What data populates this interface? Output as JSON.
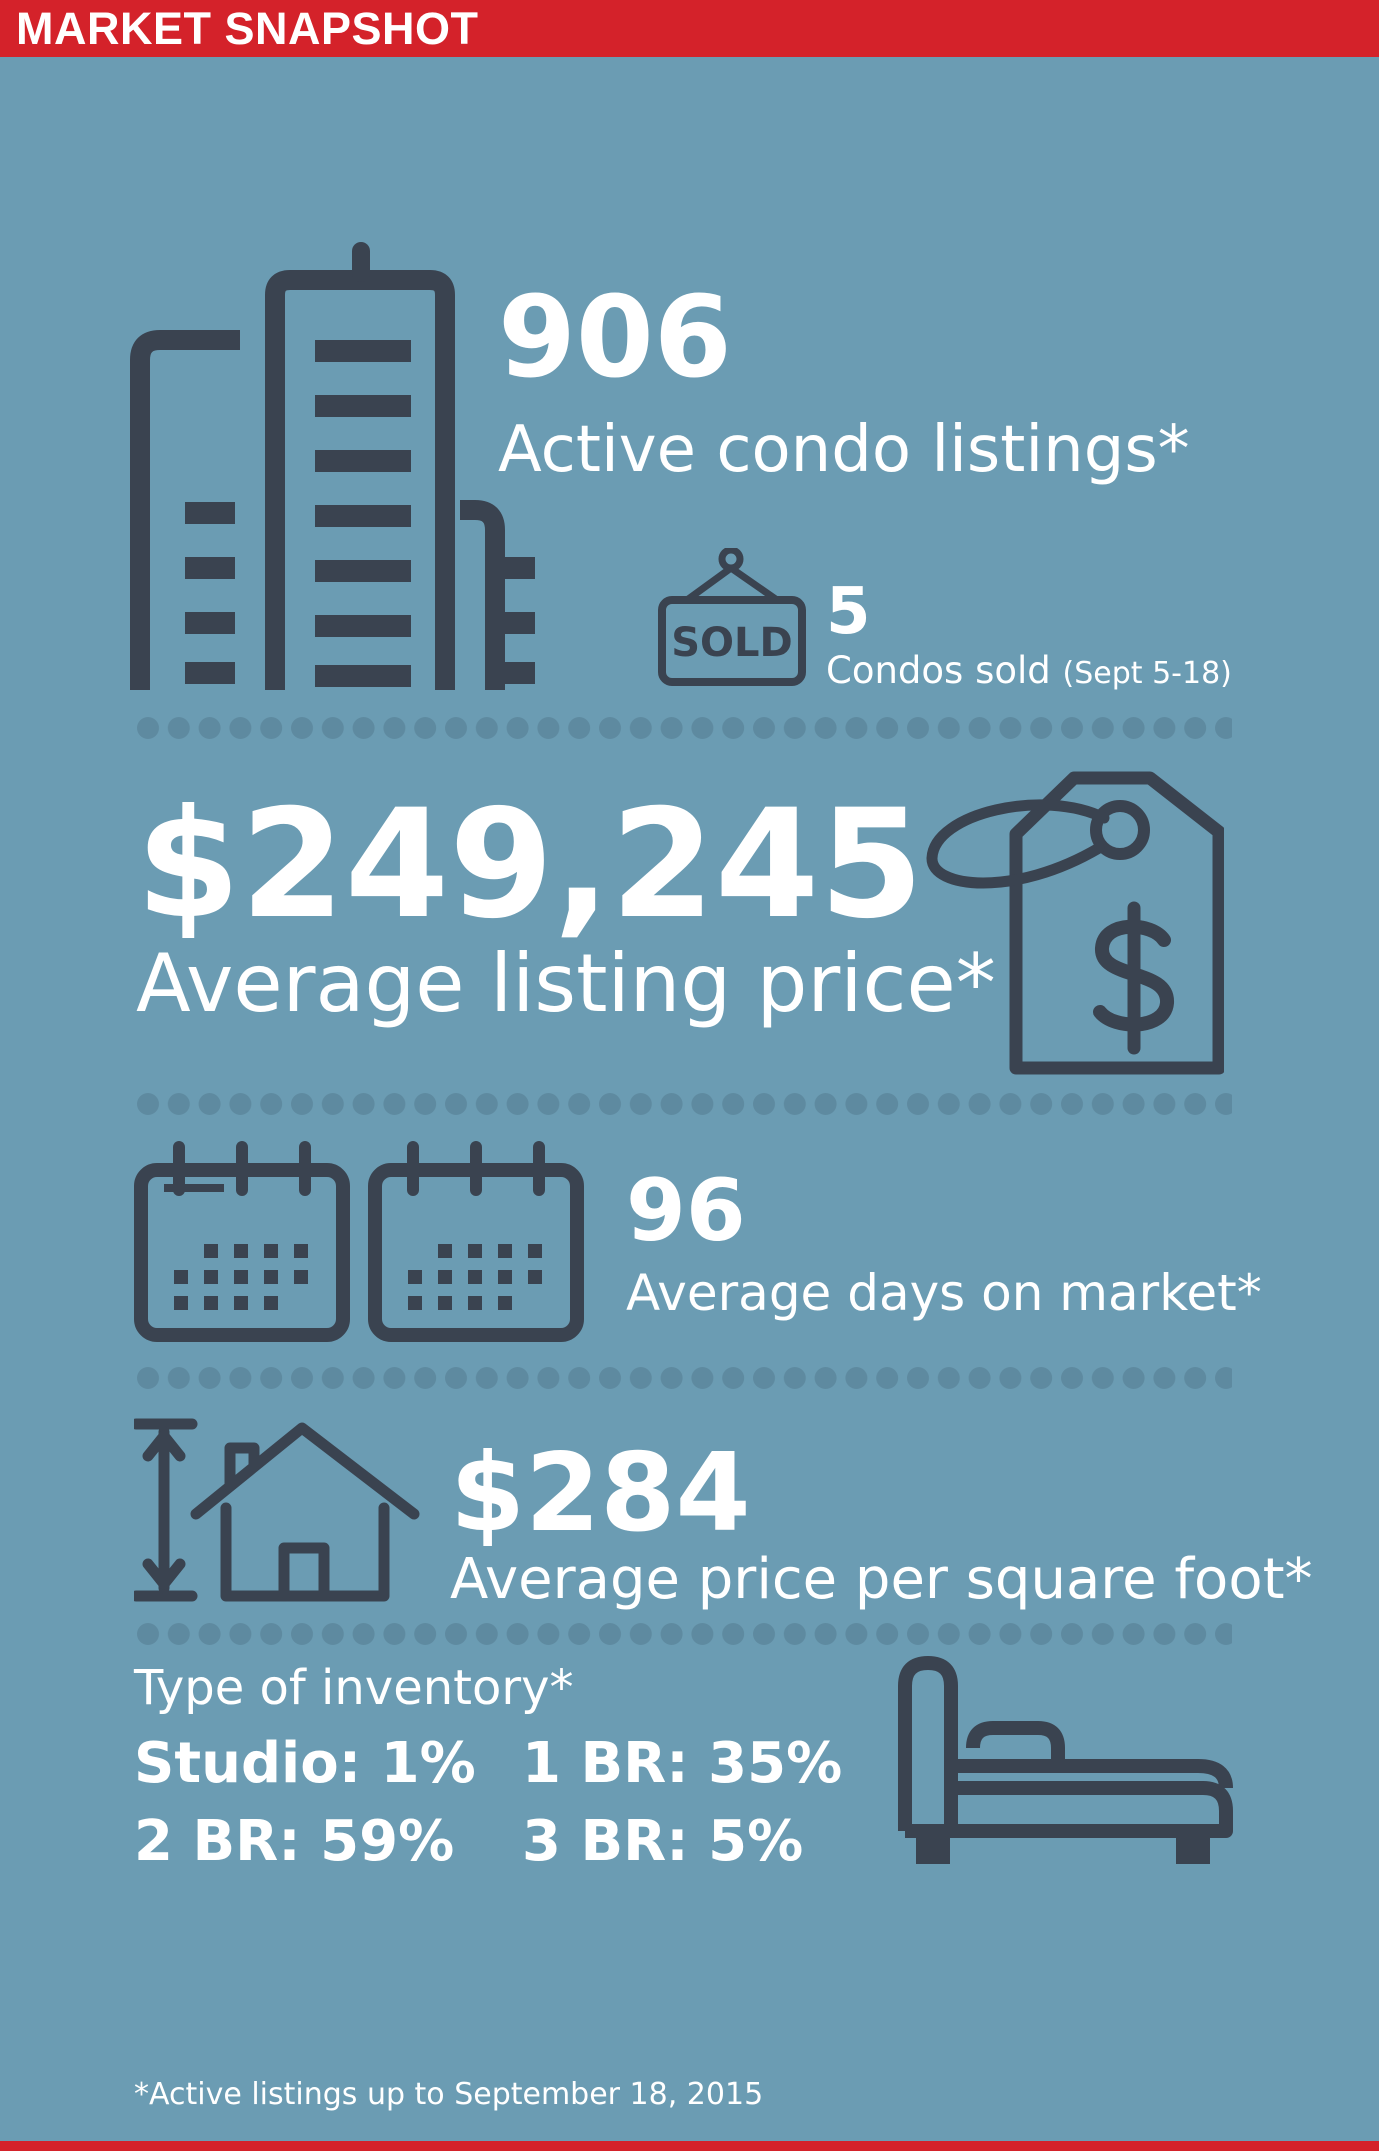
{
  "header": {
    "title": "MARKET SNAPSHOT"
  },
  "colors": {
    "background": "#6b9cb3",
    "accent": "#d4222a",
    "icon": "#3a4350",
    "dots": "#5e8aa0",
    "text": "#ffffff"
  },
  "listings": {
    "value": "906",
    "label": "Active condo listings*"
  },
  "sold": {
    "value": "5",
    "label": "Condos sold",
    "range": "(Sept 5-18)",
    "sign_text": "SOLD"
  },
  "price": {
    "value": "$249,245",
    "label": "Average listing price*"
  },
  "days": {
    "value": "96",
    "label": "Average days on market*"
  },
  "sqft": {
    "value": "$284",
    "label": "Average price per square foot*"
  },
  "inventory": {
    "title": "Type of inventory*",
    "items": [
      "Studio: 1%",
      "1 BR: 35%",
      "2 BR: 59%",
      "3 BR: 5%"
    ]
  },
  "footnote": "*Active listings up to September 18, 2015",
  "icons": [
    "buildings-icon",
    "sold-sign-icon",
    "price-tag-icon",
    "calendar-icon",
    "house-height-icon",
    "bed-icon"
  ]
}
